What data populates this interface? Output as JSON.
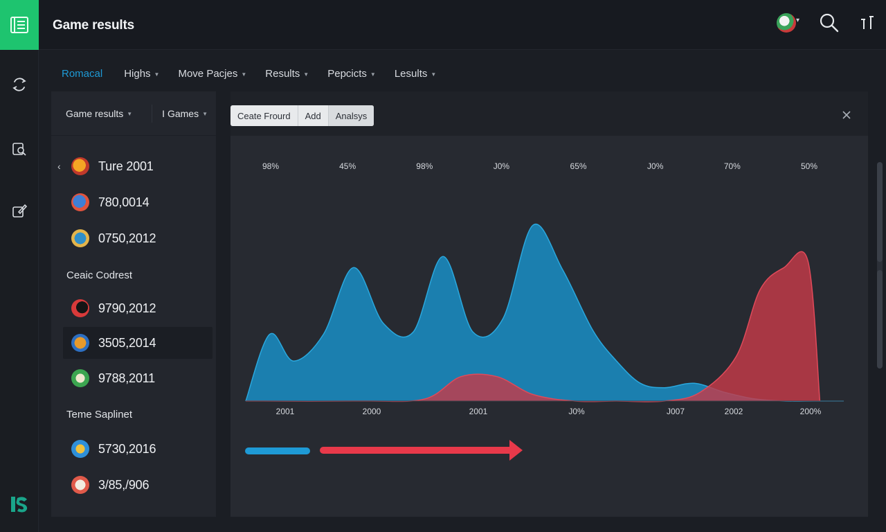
{
  "header": {
    "title": "Game results"
  },
  "tabs": [
    {
      "label": "Romacal",
      "active": true
    },
    {
      "label": "Highs"
    },
    {
      "label": "Move Pacjes"
    },
    {
      "label": "Results"
    },
    {
      "label": "Pepcicts"
    },
    {
      "label": "Lesults"
    }
  ],
  "list": {
    "filters": [
      "Game results",
      "I Games"
    ],
    "groups": [
      {
        "label": "",
        "rows": [
          {
            "label": "Ture 2001",
            "icon": "game-badge-icon",
            "colors": [
              "#f4a524",
              "#c0392b"
            ]
          },
          {
            "label": "780,0014",
            "icon": "game-badge-icon",
            "colors": [
              "#3f7fd6",
              "#e0533d"
            ]
          },
          {
            "label": "0750,2012",
            "icon": "game-badge-icon",
            "colors": [
              "#2f8fc9",
              "#e3b44a"
            ]
          }
        ]
      },
      {
        "label": "Ceaic Codrest",
        "rows": [
          {
            "label": "9790,2012",
            "icon": "game-badge-icon",
            "colors": [
              "#d83a3a",
              "#151515"
            ]
          },
          {
            "label": "3505,2014",
            "icon": "game-badge-icon",
            "colors": [
              "#e79a2b",
              "#2d6fc1"
            ],
            "selected": true
          },
          {
            "label": "9788,2011",
            "icon": "game-badge-icon",
            "colors": [
              "#3ca550",
              "#efe7cf"
            ]
          }
        ]
      },
      {
        "label": "Teme Saplinet",
        "rows": [
          {
            "label": "5730,2016",
            "icon": "game-badge-icon",
            "colors": [
              "#2e8fd8",
              "#f0c13c"
            ]
          },
          {
            "label": "3/85,/906",
            "icon": "game-badge-icon",
            "colors": [
              "#e05a4a",
              "#f2ece0"
            ]
          }
        ]
      }
    ]
  },
  "toolbar": {
    "buttons": [
      "Ceate Frourd",
      "Add",
      "Analsys"
    ]
  },
  "chart_data": {
    "type": "area",
    "top_labels": [
      "98%",
      "45%",
      "98%",
      "J0%",
      "65%",
      "J0%",
      "70%",
      "50%"
    ],
    "x_labels": [
      "2001",
      "2000",
      "2001",
      "J0%",
      "J007",
      "2002",
      "200%"
    ],
    "series": [
      {
        "color": "#1a84b6",
        "x": [
          0,
          4,
          8,
          13,
          18,
          23,
          28,
          33,
          38,
          43,
          48,
          53,
          58,
          62,
          66,
          70,
          75,
          80,
          85,
          90,
          95,
          100
        ],
        "values": [
          0,
          60,
          36,
          60,
          120,
          70,
          62,
          130,
          62,
          74,
          158,
          118,
          64,
          36,
          16,
          12,
          16,
          8,
          2,
          0,
          0,
          0
        ]
      },
      {
        "color": "#c43a49",
        "x": [
          0,
          20,
          30,
          36,
          42,
          48,
          55,
          62,
          70,
          76,
          82,
          86,
          90,
          94,
          96
        ],
        "values": [
          0,
          0,
          2,
          22,
          22,
          6,
          0,
          0,
          0,
          8,
          40,
          100,
          120,
          126,
          0
        ]
      }
    ],
    "ylim": [
      0,
      170
    ]
  },
  "legend": {
    "blue_color": "#1e9ad6",
    "red_color": "#e8394a"
  }
}
